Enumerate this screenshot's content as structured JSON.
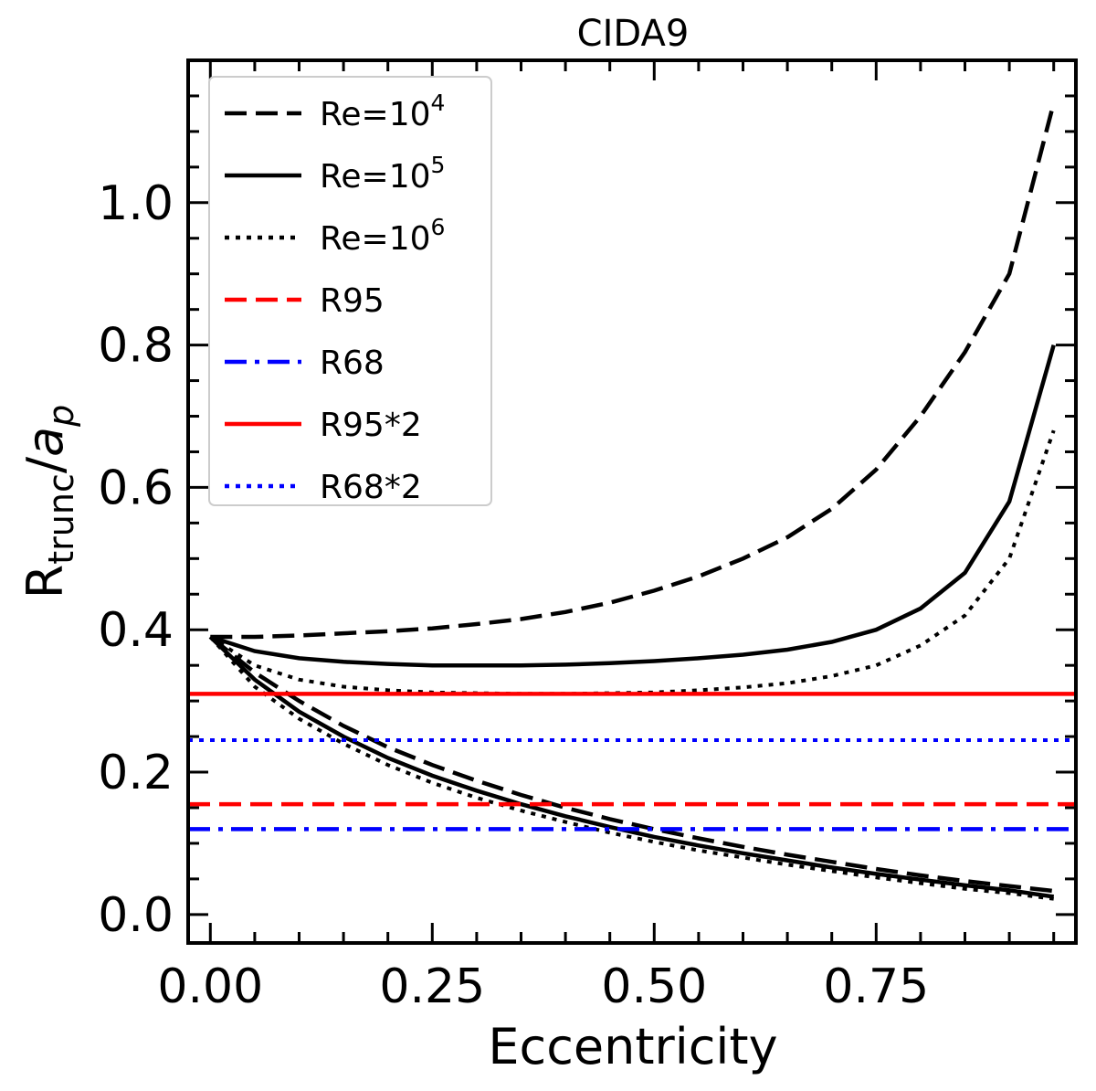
{
  "chart_data": {
    "type": "line",
    "title": "CIDA9",
    "xlabel": "Eccentricity",
    "ylabel": {
      "base": "R",
      "sub": "trunc",
      "sep": "/",
      "var": "a",
      "var_sub": "p"
    },
    "xlim": [
      -0.025,
      0.975
    ],
    "ylim": [
      -0.04,
      1.2
    ],
    "xticks": [
      0.0,
      0.25,
      0.5,
      0.75
    ],
    "xtick_labels": [
      "0.00",
      "0.25",
      "0.50",
      "0.75"
    ],
    "yticks": [
      0.0,
      0.2,
      0.4,
      0.6,
      0.8,
      1.0
    ],
    "ytick_labels": [
      "0.0",
      "0.2",
      "0.4",
      "0.6",
      "0.8",
      "1.0"
    ],
    "grid": false,
    "legend_position": "upper-left",
    "curve_x": [
      0.0,
      0.05,
      0.1,
      0.15,
      0.2,
      0.25,
      0.3,
      0.35,
      0.4,
      0.45,
      0.5,
      0.55,
      0.6,
      0.65,
      0.7,
      0.75,
      0.8,
      0.85,
      0.9,
      0.95
    ],
    "series": [
      {
        "name": "Re=10",
        "sup": "4",
        "style": "dashed",
        "color": "#000000",
        "upper": [
          0.39,
          0.39,
          0.392,
          0.395,
          0.398,
          0.402,
          0.408,
          0.415,
          0.425,
          0.438,
          0.455,
          0.475,
          0.5,
          0.53,
          0.57,
          0.625,
          0.7,
          0.79,
          0.9,
          1.14
        ],
        "lower": [
          0.39,
          0.34,
          0.3,
          0.265,
          0.235,
          0.21,
          0.188,
          0.168,
          0.15,
          0.134,
          0.12,
          0.107,
          0.095,
          0.084,
          0.074,
          0.064,
          0.055,
          0.047,
          0.04,
          0.033
        ]
      },
      {
        "name": "Re=10",
        "sup": "5",
        "style": "solid",
        "color": "#000000",
        "upper": [
          0.39,
          0.37,
          0.36,
          0.355,
          0.352,
          0.35,
          0.35,
          0.35,
          0.351,
          0.353,
          0.356,
          0.36,
          0.365,
          0.372,
          0.383,
          0.4,
          0.43,
          0.48,
          0.58,
          0.8
        ],
        "lower": [
          0.39,
          0.33,
          0.285,
          0.25,
          0.22,
          0.195,
          0.174,
          0.155,
          0.138,
          0.123,
          0.109,
          0.097,
          0.086,
          0.076,
          0.066,
          0.057,
          0.049,
          0.041,
          0.034,
          0.025
        ]
      },
      {
        "name": "Re=10",
        "sup": "6",
        "style": "dotted",
        "color": "#000000",
        "upper": [
          0.39,
          0.35,
          0.33,
          0.32,
          0.315,
          0.312,
          0.311,
          0.31,
          0.31,
          0.311,
          0.312,
          0.315,
          0.319,
          0.325,
          0.335,
          0.35,
          0.378,
          0.42,
          0.5,
          0.68
        ],
        "lower": [
          0.39,
          0.32,
          0.275,
          0.24,
          0.21,
          0.185,
          0.164,
          0.146,
          0.13,
          0.115,
          0.102,
          0.09,
          0.08,
          0.07,
          0.061,
          0.052,
          0.044,
          0.036,
          0.03,
          0.022
        ]
      },
      {
        "name": "R95",
        "style": "dashed",
        "color": "#ff0000",
        "value": 0.155
      },
      {
        "name": "R68",
        "style": "dashdot",
        "color": "#0000ff",
        "value": 0.12
      },
      {
        "name": "R95*2",
        "style": "solid",
        "color": "#ff0000",
        "value": 0.31
      },
      {
        "name": "R68*2",
        "style": "dotted",
        "color": "#0000ff",
        "value": 0.245
      }
    ]
  }
}
